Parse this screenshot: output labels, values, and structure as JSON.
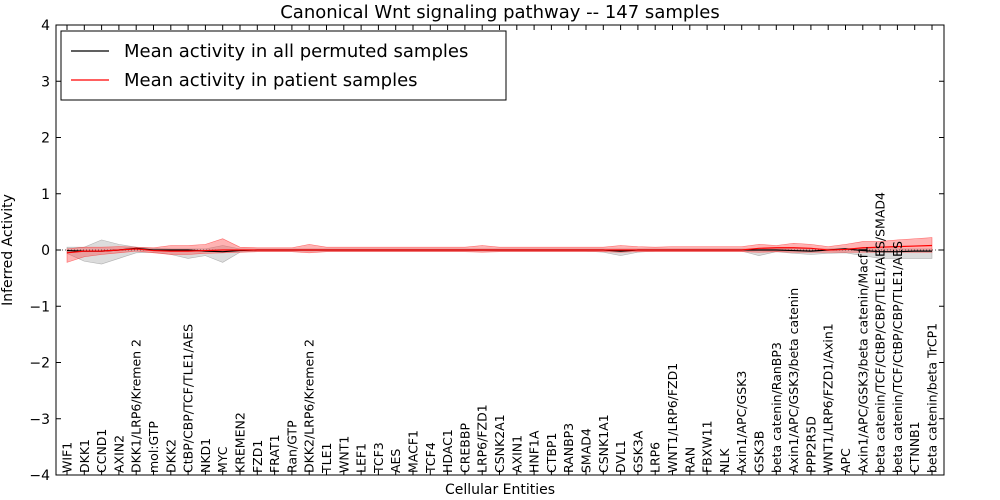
{
  "chart_data": {
    "type": "line",
    "title": "Canonical Wnt signaling pathway -- 147 samples",
    "xlabel": "Cellular Entities",
    "ylabel": "Inferred Activity",
    "ylim": [
      -4,
      4
    ],
    "yticks": [
      -4,
      -3,
      -2,
      -1,
      0,
      1,
      2,
      3,
      4
    ],
    "ytick_labels": [
      "−4",
      "−3",
      "−2",
      "−1",
      "0",
      "1",
      "2",
      "3",
      "4"
    ],
    "grid": false,
    "legend_position": "top-left",
    "categories": [
      "WIF1",
      "DKK1",
      "CCND1",
      "AXIN2",
      "DKK1/LRP6/Kremen 2",
      "mol:GTP",
      "DKK2",
      "CtBP/CBP/TCF/TLE1/AES",
      "NKD1",
      "MYC",
      "KREMEN2",
      "FZD1",
      "FRAT1",
      "Ran/GTP",
      "DKK2/LRP6/Kremen 2",
      "TLE1",
      "WNT1",
      "LEF1",
      "TCF3",
      "AES",
      "MACF1",
      "TCF4",
      "HDAC1",
      "CREBBP",
      "LRP6/FZD1",
      "CSNK2A1",
      "AXIN1",
      "HNF1A",
      "CTBP1",
      "RANBP3",
      "SMAD4",
      "CSNK1A1",
      "DVL1",
      "GSK3A",
      "LRP6",
      "WNT1/LRP6/FZD1",
      "RAN",
      "FBXW11",
      "NLK",
      "Axin1/APC/GSK3",
      "GSK3B",
      "beta catenin/RanBP3",
      "Axin1/APC/GSK3/beta catenin",
      "PPP2R5D",
      "WNT1/LRP6/FZD1/Axin1",
      "APC",
      "Axin1/APC/GSK3/beta catenin/Macf1",
      "beta catenin/TCF/CtBP/CBP/TLE1/AES/SMAD4",
      "beta catenin/TCF/CtBP/CBP/TLE1/AES",
      "CTNNB1",
      "beta catenin/beta TrCP1"
    ],
    "series": [
      {
        "name": "Mean activity in all permuted samples",
        "color": "#000000",
        "values": [
          -0.01,
          -0.02,
          -0.02,
          0.0,
          0.03,
          0.0,
          0.0,
          0.0,
          -0.02,
          -0.03,
          -0.01,
          0.0,
          0.0,
          0.0,
          0.0,
          0.0,
          0.0,
          0.0,
          0.0,
          0.0,
          0.0,
          0.0,
          0.0,
          0.0,
          0.0,
          0.0,
          0.0,
          0.0,
          0.0,
          0.0,
          0.0,
          0.0,
          -0.02,
          0.0,
          0.0,
          0.0,
          0.0,
          0.0,
          0.0,
          0.0,
          0.0,
          0.0,
          -0.01,
          -0.02,
          0.0,
          0.02,
          -0.01,
          -0.03,
          -0.03,
          -0.02,
          -0.02
        ],
        "band_upper": [
          0.05,
          0.05,
          0.18,
          0.1,
          0.05,
          0.03,
          0.02,
          0.02,
          0.02,
          0.08,
          0.02,
          0.02,
          0.02,
          0.02,
          0.02,
          0.02,
          0.02,
          0.02,
          0.02,
          0.02,
          0.02,
          0.02,
          0.02,
          0.02,
          0.02,
          0.02,
          0.02,
          0.02,
          0.02,
          0.02,
          0.02,
          0.02,
          0.02,
          0.02,
          0.02,
          0.02,
          0.02,
          0.02,
          0.02,
          0.02,
          0.02,
          0.02,
          0.02,
          0.02,
          0.02,
          0.03,
          0.03,
          0.02,
          0.02,
          0.02,
          0.02
        ],
        "band_lower": [
          -0.06,
          -0.2,
          -0.25,
          -0.15,
          -0.05,
          -0.04,
          -0.08,
          -0.15,
          -0.1,
          -0.22,
          -0.04,
          -0.02,
          -0.02,
          -0.02,
          -0.02,
          -0.02,
          -0.02,
          -0.02,
          -0.02,
          -0.02,
          -0.02,
          -0.02,
          -0.02,
          -0.02,
          -0.02,
          -0.02,
          -0.02,
          -0.02,
          -0.02,
          -0.02,
          -0.02,
          -0.04,
          -0.1,
          -0.04,
          -0.02,
          -0.02,
          -0.02,
          -0.02,
          -0.02,
          -0.02,
          -0.1,
          -0.03,
          -0.06,
          -0.08,
          -0.06,
          -0.05,
          -0.1,
          -0.15,
          -0.15,
          -0.15,
          -0.15
        ]
      },
      {
        "name": "Mean activity in patient samples",
        "color": "#ff0000",
        "values": [
          -0.05,
          -0.02,
          -0.02,
          0.0,
          0.02,
          -0.01,
          -0.02,
          -0.02,
          -0.01,
          0.0,
          0.0,
          0.0,
          0.0,
          0.0,
          0.0,
          0.0,
          0.0,
          0.0,
          0.0,
          0.0,
          0.0,
          0.0,
          0.0,
          0.0,
          0.0,
          0.0,
          0.0,
          0.0,
          0.0,
          0.0,
          0.0,
          0.0,
          0.0,
          0.0,
          0.0,
          0.0,
          0.0,
          0.0,
          0.0,
          0.0,
          0.03,
          0.04,
          0.04,
          0.03,
          0.0,
          0.01,
          0.04,
          0.05,
          0.06,
          0.07,
          0.08
        ],
        "band_upper": [
          0.02,
          0.05,
          0.05,
          0.06,
          0.05,
          0.04,
          0.08,
          0.08,
          0.1,
          0.2,
          0.05,
          0.04,
          0.04,
          0.04,
          0.1,
          0.05,
          0.05,
          0.05,
          0.05,
          0.05,
          0.05,
          0.05,
          0.05,
          0.05,
          0.08,
          0.05,
          0.05,
          0.05,
          0.05,
          0.05,
          0.05,
          0.05,
          0.08,
          0.06,
          0.05,
          0.06,
          0.06,
          0.06,
          0.06,
          0.06,
          0.1,
          0.08,
          0.12,
          0.1,
          0.06,
          0.1,
          0.15,
          0.15,
          0.18,
          0.2,
          0.22
        ],
        "band_lower": [
          -0.22,
          -0.12,
          -0.08,
          -0.05,
          -0.02,
          -0.05,
          -0.08,
          -0.08,
          -0.06,
          -0.05,
          -0.04,
          -0.03,
          -0.03,
          -0.03,
          -0.05,
          -0.03,
          -0.03,
          -0.03,
          -0.03,
          -0.03,
          -0.03,
          -0.03,
          -0.03,
          -0.03,
          -0.04,
          -0.03,
          -0.03,
          -0.03,
          -0.03,
          -0.03,
          -0.03,
          -0.03,
          -0.04,
          -0.03,
          -0.03,
          -0.03,
          -0.03,
          -0.03,
          -0.03,
          -0.03,
          -0.04,
          -0.03,
          -0.04,
          -0.04,
          -0.04,
          -0.04,
          -0.04,
          -0.04,
          -0.04,
          -0.04,
          -0.04
        ]
      }
    ]
  }
}
